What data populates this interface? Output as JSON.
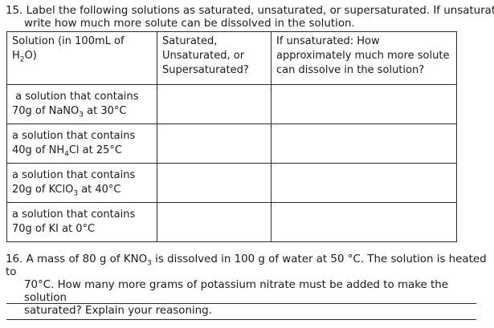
{
  "q15": {
    "number": "15.",
    "line1": "Label the following solutions as saturated, unsaturated, or supersaturated.  If unsaturated,",
    "line2": "write how much more solute can be dissolved in the solution."
  },
  "table": {
    "headers": {
      "solution_prefix": "Solution (in 100mL of H",
      "solution_sub": "2",
      "solution_suffix": "O)",
      "col2_l1": "Saturated,",
      "col2_l2": "Unsaturated, or",
      "col2_l3": "Supersaturated?",
      "col3_l1": "If unsaturated:  How",
      "col3_l2": "approximately much more solute",
      "col3_l3": "can dissolve in the solution?"
    },
    "rows": [
      {
        "line1": " a solution that contains",
        "pre": "70g of NaNO",
        "sub": "3",
        "post": " at 30°C"
      },
      {
        "line1": "a solution that contains",
        "pre": "40g of NH",
        "sub": "4",
        "post": "Cl at 25°C"
      },
      {
        "line1": "a solution that contains",
        "pre": "20g of KClO",
        "sub": "3",
        "post": " at 40°C"
      },
      {
        "line1": "a solution that contains",
        "pre": "70g of KI at 0°C",
        "sub": "",
        "post": ""
      }
    ]
  },
  "q16": {
    "number": "16.",
    "line1_pre": "A mass of 80 g of KNO",
    "line1_sub": "3",
    "line1_post": " is dissolved in 100 g of water at 50 °C. The solution is heated to",
    "line2": "70°C. How many more grams of potassium nitrate must be added to make the solution",
    "line3": "saturated?  Explain your reasoning."
  }
}
